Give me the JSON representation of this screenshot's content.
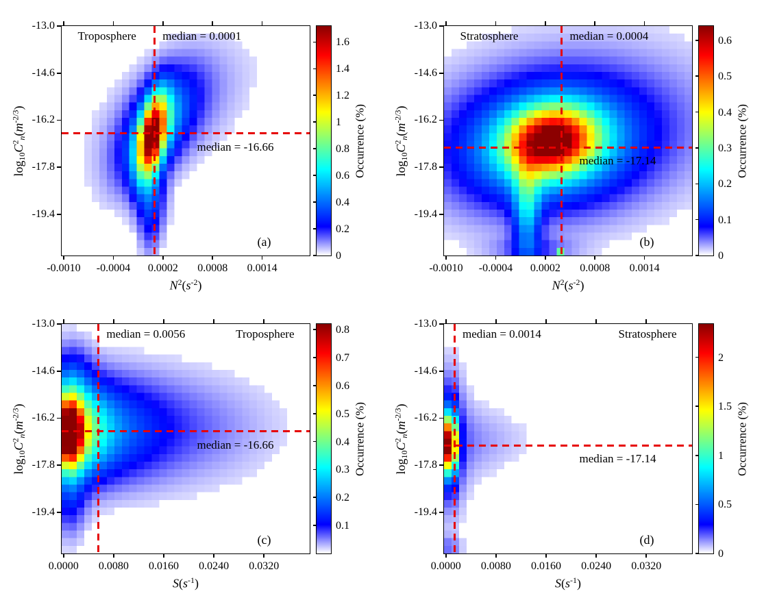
{
  "colors": {
    "median_line": "#e60000",
    "axis": "#000000",
    "colormap_stops": [
      [
        0,
        "#ffffff"
      ],
      [
        0.125,
        "#0000ff"
      ],
      [
        0.375,
        "#00ffff"
      ],
      [
        0.625,
        "#ffff00"
      ],
      [
        0.875,
        "#ff0000"
      ],
      [
        1,
        "#8c0000"
      ]
    ]
  },
  "chart_data": [
    {
      "id": "a",
      "type": "heatmap",
      "region_label": "Troposphere",
      "region_side": "left",
      "panel_letter": "(a)",
      "xlim": [
        -0.001025,
        0.001975
      ],
      "ylim": [
        -20.8,
        -13.0
      ],
      "xtick_values": [
        -0.001,
        -0.0004,
        0.0002,
        0.0008,
        0.0014
      ],
      "xtick_labels": [
        "-0.0010",
        "-0.0004",
        "0.0002",
        "0.0008",
        "0.0014"
      ],
      "ytick_values": [
        -13.0,
        -14.6,
        -16.2,
        -17.8,
        -19.4
      ],
      "ytick_labels": [
        "-13.0",
        "-14.6",
        "-16.2",
        "-17.8",
        "-19.4"
      ],
      "xlabel_segments": [
        {
          "t": "N",
          "i": true
        },
        {
          "t": "2",
          "sup": true
        },
        {
          "t": "("
        },
        {
          "t": "s",
          "i": true
        },
        {
          "t": "-2",
          "sup": true
        },
        {
          "t": ")"
        }
      ],
      "ylabel_segments": [
        {
          "t": "log"
        },
        {
          "t": "10",
          "sub": true
        },
        {
          "t": "C",
          "i": true
        },
        {
          "t": "2",
          "sup": true
        },
        {
          "t": "n",
          "sub": true,
          "i": true
        },
        {
          "t": "("
        },
        {
          "t": "m",
          "i": true
        },
        {
          "t": "-2/3",
          "sup": true
        },
        {
          "t": ")"
        }
      ],
      "median_x": 0.0001,
      "median_x_label": "median = 0.0001",
      "median_y": -16.66,
      "median_y_label": "median = -16.66",
      "colorbar": {
        "label": "Occurrence (%)",
        "min": 0,
        "max": 1.72,
        "tick_values": [
          0,
          0.2,
          0.4,
          0.6,
          0.8,
          1,
          1.2,
          1.4,
          1.6
        ],
        "tick_labels": [
          "0",
          "0.2",
          "0.4",
          "0.6",
          "0.8",
          "1",
          "1.2",
          "1.4",
          "1.6"
        ]
      },
      "grid": {
        "nx": 33,
        "ny": 30
      },
      "density_model": {
        "gaussians": [
          {
            "cx": 7e-05,
            "cy": -16.75,
            "sx": 0.00012,
            "sy": 0.95,
            "rho": 0.45,
            "amp": 1.4
          },
          {
            "cx": 0.00012,
            "cy": -16.5,
            "sx": 0.0003,
            "sy": 1.2,
            "rho": 0.55,
            "amp": 0.45
          },
          {
            "cx": 0.0003,
            "cy": -15.9,
            "sx": 0.0006,
            "sy": 1.5,
            "rho": 0.5,
            "amp": 0.13
          },
          {
            "cx": 6e-05,
            "cy": -18.9,
            "sx": 0.00012,
            "sy": 0.85,
            "rho": 0,
            "amp": 0.28
          },
          {
            "cx": 4e-05,
            "cy": -20.1,
            "sx": 9e-05,
            "sy": 0.7,
            "rho": 0,
            "amp": 0.08
          }
        ],
        "special_cells": []
      }
    },
    {
      "id": "b",
      "type": "heatmap",
      "region_label": "Stratosphere",
      "region_side": "left",
      "panel_letter": "(b)",
      "xlim": [
        -0.001025,
        0.001975
      ],
      "ylim": [
        -20.8,
        -13.0
      ],
      "xtick_values": [
        -0.001,
        -0.0004,
        0.0002,
        0.0008,
        0.0014
      ],
      "xtick_labels": [
        "-0.0010",
        "-0.0004",
        "0.0002",
        "0.0008",
        "0.0014"
      ],
      "ytick_values": [
        -13.0,
        -14.6,
        -16.2,
        -17.8,
        -19.4
      ],
      "ytick_labels": [
        "-13.0",
        "-14.6",
        "-16.2",
        "-17.8",
        "-19.4"
      ],
      "xlabel_segments": [
        {
          "t": "N",
          "i": true
        },
        {
          "t": "2",
          "sup": true
        },
        {
          "t": "("
        },
        {
          "t": "s",
          "i": true
        },
        {
          "t": "-2",
          "sup": true
        },
        {
          "t": ")"
        }
      ],
      "ylabel_segments": [
        {
          "t": "log"
        },
        {
          "t": "10",
          "sub": true
        },
        {
          "t": "C",
          "i": true
        },
        {
          "t": "2",
          "sup": true
        },
        {
          "t": "n",
          "sub": true,
          "i": true
        },
        {
          "t": "("
        },
        {
          "t": "m",
          "i": true
        },
        {
          "t": "-2/3",
          "sup": true
        },
        {
          "t": ")"
        }
      ],
      "median_x": 0.0004,
      "median_x_label": "median = 0.0004",
      "median_y": -17.14,
      "median_y_label": "median = -17.14",
      "colorbar": {
        "label": "Occurrence (%)",
        "min": 0,
        "max": 0.64,
        "tick_values": [
          0,
          0.1,
          0.2,
          0.3,
          0.4,
          0.5,
          0.6
        ],
        "tick_labels": [
          "0",
          "0.1",
          "0.2",
          "0.3",
          "0.4",
          "0.5",
          "0.6"
        ]
      },
      "grid": {
        "nx": 33,
        "ny": 30
      },
      "density_model": {
        "gaussians": [
          {
            "cx": 0.00028,
            "cy": -16.9,
            "sx": 0.00035,
            "sy": 0.75,
            "rho": 0.1,
            "amp": 0.45
          },
          {
            "cx": 0.00025,
            "cy": -17.05,
            "sx": 0.00068,
            "sy": 1.3,
            "rho": 0.1,
            "amp": 0.2
          },
          {
            "cx": 0.00045,
            "cy": -16.6,
            "sx": 0.00115,
            "sy": 1.9,
            "rho": 0.15,
            "amp": 0.08
          },
          {
            "cx": -2e-05,
            "cy": -19.2,
            "sx": 0.00011,
            "sy": 1.2,
            "rho": 0,
            "amp": 0.17
          },
          {
            "cx": 5e-05,
            "cy": -20.6,
            "sx": 0.00035,
            "sy": 0.3,
            "rho": 0,
            "amp": 0.05
          }
        ],
        "special_cells": [
          {
            "col": 15,
            "row": 29,
            "value": 0.3
          }
        ]
      }
    },
    {
      "id": "c",
      "type": "heatmap",
      "region_label": "Troposphere",
      "region_side": "right",
      "panel_letter": "(c)",
      "xlim": [
        -0.0003,
        0.0393
      ],
      "ylim": [
        -20.8,
        -13.0
      ],
      "xtick_values": [
        0.0,
        0.008,
        0.016,
        0.024,
        0.032
      ],
      "xtick_labels": [
        "0.0000",
        "0.0080",
        "0.0160",
        "0.0240",
        "0.0320"
      ],
      "ytick_values": [
        -13.0,
        -14.6,
        -16.2,
        -17.8,
        -19.4
      ],
      "ytick_labels": [
        "-13.0",
        "-14.6",
        "-16.2",
        "-17.8",
        "-19.4"
      ],
      "xlabel_segments": [
        {
          "t": "S",
          "i": true
        },
        {
          "t": "("
        },
        {
          "t": "s",
          "i": true
        },
        {
          "t": "-1",
          "sup": true
        },
        {
          "t": ")"
        }
      ],
      "ylabel_segments": [
        {
          "t": "log"
        },
        {
          "t": "10",
          "sub": true
        },
        {
          "t": "C",
          "i": true
        },
        {
          "t": "2",
          "sup": true
        },
        {
          "t": "n",
          "sub": true,
          "i": true
        },
        {
          "t": "("
        },
        {
          "t": "m",
          "i": true
        },
        {
          "t": "-2/3",
          "sup": true
        },
        {
          "t": ")"
        }
      ],
      "median_x": 0.0056,
      "median_x_label": "median = 0.0056",
      "median_y": -16.66,
      "median_y_label": "median = -16.66",
      "colorbar": {
        "label": "Occurrence (%)",
        "min": 0,
        "max": 0.82,
        "tick_values": [
          0.1,
          0.2,
          0.3,
          0.4,
          0.5,
          0.6,
          0.7,
          0.8
        ],
        "tick_labels": [
          "0.1",
          "0.2",
          "0.3",
          "0.4",
          "0.5",
          "0.6",
          "0.7",
          "0.8"
        ]
      },
      "grid": {
        "nx": 33,
        "ny": 30
      },
      "density_model": {
        "gaussians": [
          {
            "cx": 0.0009,
            "cy": -16.68,
            "sx": 0.0014,
            "sy": 0.78,
            "rho": 0,
            "amp": 0.7
          },
          {
            "cx": 0.0022,
            "cy": -16.65,
            "sx": 0.0032,
            "sy": 1.0,
            "rho": 0,
            "amp": 0.28
          },
          {
            "cx": 0.005,
            "cy": -16.6,
            "sx": 0.0065,
            "sy": 1.15,
            "rho": 0,
            "amp": 0.14
          },
          {
            "cx": 0.013,
            "cy": -16.55,
            "sx": 0.0125,
            "sy": 1.3,
            "rho": 0,
            "amp": 0.08
          },
          {
            "cx": 0.0012,
            "cy": -14.85,
            "sx": 0.0022,
            "sy": 0.85,
            "rho": 0,
            "amp": 0.1
          },
          {
            "cx": 0.001,
            "cy": -18.9,
            "sx": 0.0018,
            "sy": 0.95,
            "rho": 0,
            "amp": 0.1
          }
        ],
        "special_cells": []
      }
    },
    {
      "id": "d",
      "type": "heatmap",
      "region_label": "Stratosphere",
      "region_side": "right",
      "panel_letter": "(d)",
      "xlim": [
        -0.0003,
        0.0393
      ],
      "ylim": [
        -20.8,
        -13.0
      ],
      "xtick_values": [
        0.0,
        0.008,
        0.016,
        0.024,
        0.032
      ],
      "xtick_labels": [
        "0.0000",
        "0.0080",
        "0.0160",
        "0.0240",
        "0.0320"
      ],
      "ytick_values": [
        -13.0,
        -14.6,
        -16.2,
        -17.8,
        -19.4
      ],
      "ytick_labels": [
        "-13.0",
        "-14.6",
        "-16.2",
        "-17.8",
        "-19.4"
      ],
      "xlabel_segments": [
        {
          "t": "S",
          "i": true
        },
        {
          "t": "("
        },
        {
          "t": "s",
          "i": true
        },
        {
          "t": "-1",
          "sup": true
        },
        {
          "t": ")"
        }
      ],
      "ylabel_segments": [
        {
          "t": "log"
        },
        {
          "t": "10",
          "sub": true
        },
        {
          "t": "C",
          "i": true
        },
        {
          "t": "2",
          "sup": true
        },
        {
          "t": "n",
          "sub": true,
          "i": true
        },
        {
          "t": "("
        },
        {
          "t": "m",
          "i": true
        },
        {
          "t": "-2/3",
          "sup": true
        },
        {
          "t": ")"
        }
      ],
      "median_x": 0.0014,
      "median_x_label": "median = 0.0014",
      "median_y": -17.14,
      "median_y_label": "median = -17.14",
      "colorbar": {
        "label": "Occurrence (%)",
        "min": 0,
        "max": 2.34,
        "tick_values": [
          0,
          0.5,
          1,
          1.5,
          2
        ],
        "tick_labels": [
          "0",
          "0.5",
          "1",
          "1.5",
          "2"
        ]
      },
      "grid": {
        "nx": 33,
        "ny": 30
      },
      "density_model": {
        "gaussians": [
          {
            "cx": 0.0006,
            "cy": -17.1,
            "sx": 0.00075,
            "sy": 0.62,
            "rho": 0,
            "amp": 2.0
          },
          {
            "cx": 0.0007,
            "cy": -17.0,
            "sx": 0.0011,
            "sy": 1.25,
            "rho": 0,
            "amp": 0.45
          },
          {
            "cx": 0.001,
            "cy": -17.0,
            "sx": 0.0022,
            "sy": 1.9,
            "rho": 0,
            "amp": 0.12
          },
          {
            "cx": 0.004,
            "cy": -17.0,
            "sx": 0.0045,
            "sy": 0.9,
            "rho": 0,
            "amp": 0.09
          },
          {
            "cx": 0.01,
            "cy": -16.9,
            "sx": 0.0075,
            "sy": 0.7,
            "rho": 0,
            "amp": 0.035
          },
          {
            "cx": 0.0005,
            "cy": -20.6,
            "sx": 0.0014,
            "sy": 0.28,
            "rho": 0,
            "amp": 0.15
          }
        ],
        "special_cells": []
      }
    }
  ]
}
